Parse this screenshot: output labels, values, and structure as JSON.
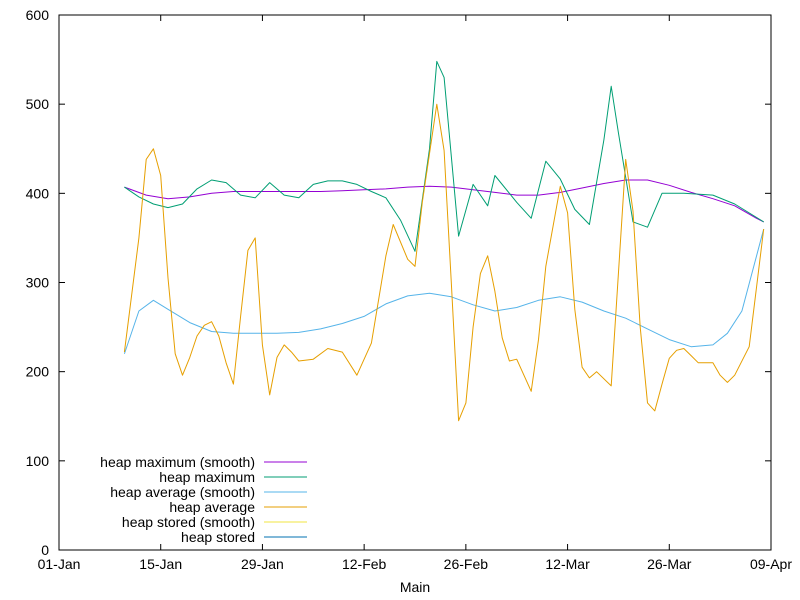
{
  "chart_data": {
    "type": "line",
    "xlabel": "Main",
    "ylabel": "",
    "ylim": [
      0,
      600
    ],
    "xlim": [
      "2023-01-01",
      "2023-04-09"
    ],
    "x_ticks": [
      {
        "date": "2023-01-01",
        "label": "01-Jan"
      },
      {
        "date": "2023-01-15",
        "label": "15-Jan"
      },
      {
        "date": "2023-01-29",
        "label": "29-Jan"
      },
      {
        "date": "2023-02-12",
        "label": "12-Feb"
      },
      {
        "date": "2023-02-26",
        "label": "26-Feb"
      },
      {
        "date": "2023-03-12",
        "label": "12-Mar"
      },
      {
        "date": "2023-03-26",
        "label": "26-Mar"
      },
      {
        "date": "2023-04-09",
        "label": "09-Apr"
      }
    ],
    "y_ticks": [
      0,
      100,
      200,
      300,
      400,
      500,
      600
    ],
    "grid": false,
    "legend_position": "bottom-left",
    "series": [
      {
        "name": "heap maximum (smooth)",
        "color": "#9400d3",
        "points": [
          [
            "2023-01-10",
            407
          ],
          [
            "2023-01-13",
            398
          ],
          [
            "2023-01-16",
            394
          ],
          [
            "2023-01-19",
            396
          ],
          [
            "2023-01-22",
            400
          ],
          [
            "2023-01-25",
            402
          ],
          [
            "2023-01-28",
            402
          ],
          [
            "2023-01-31",
            402
          ],
          [
            "2023-02-03",
            402
          ],
          [
            "2023-02-06",
            402
          ],
          [
            "2023-02-09",
            403
          ],
          [
            "2023-02-12",
            404
          ],
          [
            "2023-02-15",
            405
          ],
          [
            "2023-02-18",
            407
          ],
          [
            "2023-02-21",
            408
          ],
          [
            "2023-02-24",
            407
          ],
          [
            "2023-02-27",
            404
          ],
          [
            "2023-03-02",
            401
          ],
          [
            "2023-03-05",
            398
          ],
          [
            "2023-03-08",
            398
          ],
          [
            "2023-03-11",
            401
          ],
          [
            "2023-03-14",
            406
          ],
          [
            "2023-03-17",
            411
          ],
          [
            "2023-03-20",
            415
          ],
          [
            "2023-03-23",
            415
          ],
          [
            "2023-03-26",
            409
          ],
          [
            "2023-03-29",
            401
          ],
          [
            "2023-04-01",
            394
          ],
          [
            "2023-04-04",
            386
          ],
          [
            "2023-04-07",
            372
          ],
          [
            "2023-04-08",
            368
          ]
        ]
      },
      {
        "name": "heap maximum",
        "color": "#009e73",
        "points": [
          [
            "2023-01-10",
            407
          ],
          [
            "2023-01-12",
            396
          ],
          [
            "2023-01-14",
            388
          ],
          [
            "2023-01-16",
            384
          ],
          [
            "2023-01-18",
            388
          ],
          [
            "2023-01-20",
            405
          ],
          [
            "2023-01-22",
            415
          ],
          [
            "2023-01-24",
            412
          ],
          [
            "2023-01-26",
            398
          ],
          [
            "2023-01-28",
            395
          ],
          [
            "2023-01-30",
            412
          ],
          [
            "2023-02-01",
            398
          ],
          [
            "2023-02-03",
            395
          ],
          [
            "2023-02-05",
            410
          ],
          [
            "2023-02-07",
            414
          ],
          [
            "2023-02-09",
            414
          ],
          [
            "2023-02-11",
            410
          ],
          [
            "2023-02-13",
            402
          ],
          [
            "2023-02-15",
            395
          ],
          [
            "2023-02-17",
            370
          ],
          [
            "2023-02-19",
            335
          ],
          [
            "2023-02-21",
            450
          ],
          [
            "2023-02-22",
            548
          ],
          [
            "2023-02-23",
            530
          ],
          [
            "2023-02-25",
            352
          ],
          [
            "2023-02-27",
            410
          ],
          [
            "2023-02-29",
            386
          ],
          [
            "2023-03-02",
            420
          ],
          [
            "2023-03-05",
            390
          ],
          [
            "2023-03-07",
            372
          ],
          [
            "2023-03-09",
            436
          ],
          [
            "2023-03-11",
            416
          ],
          [
            "2023-03-13",
            382
          ],
          [
            "2023-03-15",
            365
          ],
          [
            "2023-03-17",
            460
          ],
          [
            "2023-03-18",
            520
          ],
          [
            "2023-03-19",
            468
          ],
          [
            "2023-03-21",
            368
          ],
          [
            "2023-03-23",
            362
          ],
          [
            "2023-03-25",
            400
          ],
          [
            "2023-03-28",
            400
          ],
          [
            "2023-04-01",
            398
          ],
          [
            "2023-04-04",
            388
          ],
          [
            "2023-04-08",
            368
          ]
        ]
      },
      {
        "name": "heap average (smooth)",
        "color": "#56b4e9",
        "points": [
          [
            "2023-01-10",
            220
          ],
          [
            "2023-01-12",
            268
          ],
          [
            "2023-01-14",
            280
          ],
          [
            "2023-01-16",
            270
          ],
          [
            "2023-01-19",
            255
          ],
          [
            "2023-01-22",
            245
          ],
          [
            "2023-01-25",
            243
          ],
          [
            "2023-01-28",
            243
          ],
          [
            "2023-01-31",
            243
          ],
          [
            "2023-02-03",
            244
          ],
          [
            "2023-02-06",
            248
          ],
          [
            "2023-02-09",
            254
          ],
          [
            "2023-02-12",
            262
          ],
          [
            "2023-02-15",
            276
          ],
          [
            "2023-02-18",
            285
          ],
          [
            "2023-02-21",
            288
          ],
          [
            "2023-02-24",
            284
          ],
          [
            "2023-02-27",
            275
          ],
          [
            "2023-03-02",
            268
          ],
          [
            "2023-03-05",
            272
          ],
          [
            "2023-03-08",
            280
          ],
          [
            "2023-03-11",
            284
          ],
          [
            "2023-03-14",
            278
          ],
          [
            "2023-03-17",
            268
          ],
          [
            "2023-03-20",
            260
          ],
          [
            "2023-03-23",
            248
          ],
          [
            "2023-03-26",
            236
          ],
          [
            "2023-03-29",
            228
          ],
          [
            "2023-04-01",
            230
          ],
          [
            "2023-04-03",
            243
          ],
          [
            "2023-04-05",
            268
          ],
          [
            "2023-04-08",
            360
          ]
        ]
      },
      {
        "name": "heap average",
        "color": "#e69f00",
        "points": [
          [
            "2023-01-10",
            222
          ],
          [
            "2023-01-12",
            350
          ],
          [
            "2023-01-13",
            438
          ],
          [
            "2023-01-14",
            450
          ],
          [
            "2023-01-15",
            420
          ],
          [
            "2023-01-16",
            305
          ],
          [
            "2023-01-17",
            220
          ],
          [
            "2023-01-18",
            196
          ],
          [
            "2023-01-19",
            216
          ],
          [
            "2023-01-20",
            240
          ],
          [
            "2023-01-21",
            252
          ],
          [
            "2023-01-22",
            256
          ],
          [
            "2023-01-23",
            240
          ],
          [
            "2023-01-24",
            210
          ],
          [
            "2023-01-25",
            186
          ],
          [
            "2023-01-26",
            262
          ],
          [
            "2023-01-27",
            336
          ],
          [
            "2023-01-28",
            350
          ],
          [
            "2023-01-29",
            230
          ],
          [
            "2023-01-30",
            174
          ],
          [
            "2023-01-31",
            216
          ],
          [
            "2023-02-01",
            230
          ],
          [
            "2023-02-02",
            222
          ],
          [
            "2023-02-03",
            212
          ],
          [
            "2023-02-05",
            214
          ],
          [
            "2023-02-07",
            226
          ],
          [
            "2023-02-09",
            222
          ],
          [
            "2023-02-11",
            196
          ],
          [
            "2023-02-13",
            232
          ],
          [
            "2023-02-15",
            330
          ],
          [
            "2023-02-16",
            365
          ],
          [
            "2023-02-18",
            326
          ],
          [
            "2023-02-19",
            318
          ],
          [
            "2023-02-20",
            390
          ],
          [
            "2023-02-22",
            500
          ],
          [
            "2023-02-23",
            448
          ],
          [
            "2023-02-24",
            300
          ],
          [
            "2023-02-25",
            145
          ],
          [
            "2023-02-26",
            165
          ],
          [
            "2023-02-27",
            250
          ],
          [
            "2023-02-28",
            310
          ],
          [
            "2023-03-01",
            330
          ],
          [
            "2023-03-02",
            290
          ],
          [
            "2023-03-03",
            238
          ],
          [
            "2023-03-04",
            212
          ],
          [
            "2023-03-05",
            214
          ],
          [
            "2023-03-07",
            178
          ],
          [
            "2023-03-08",
            236
          ],
          [
            "2023-03-09",
            318
          ],
          [
            "2023-03-11",
            408
          ],
          [
            "2023-03-12",
            378
          ],
          [
            "2023-03-13",
            270
          ],
          [
            "2023-03-14",
            205
          ],
          [
            "2023-03-15",
            193
          ],
          [
            "2023-03-16",
            200
          ],
          [
            "2023-03-18",
            184
          ],
          [
            "2023-03-19",
            310
          ],
          [
            "2023-03-20",
            438
          ],
          [
            "2023-03-21",
            380
          ],
          [
            "2023-03-22",
            250
          ],
          [
            "2023-03-23",
            165
          ],
          [
            "2023-03-24",
            156
          ],
          [
            "2023-03-25",
            186
          ],
          [
            "2023-03-26",
            215
          ],
          [
            "2023-03-27",
            224
          ],
          [
            "2023-03-28",
            226
          ],
          [
            "2023-03-29",
            218
          ],
          [
            "2023-03-30",
            210
          ],
          [
            "2023-04-01",
            210
          ],
          [
            "2023-04-02",
            196
          ],
          [
            "2023-04-03",
            188
          ],
          [
            "2023-04-04",
            196
          ],
          [
            "2023-04-06",
            228
          ],
          [
            "2023-04-08",
            360
          ]
        ]
      },
      {
        "name": "heap stored (smooth)",
        "color": "#f0e442",
        "points": []
      },
      {
        "name": "heap stored",
        "color": "#0072b2",
        "points": []
      }
    ]
  }
}
